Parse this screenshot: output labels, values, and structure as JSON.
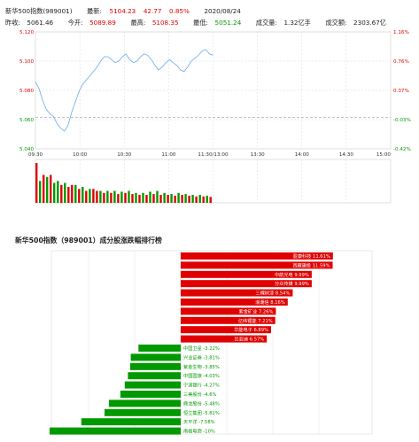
{
  "header": {
    "name": "新华500指数(989001)",
    "latest_label": "最新:",
    "latest_value": "5104.23",
    "change": "42.77",
    "change_pct": "0.85%",
    "date": "2020/08/24",
    "prev_close_label": "昨收:",
    "prev_close_value": "5061.46",
    "open_label": "今开:",
    "open_value": "5089.89",
    "high_label": "最高:",
    "high_value": "5108.35",
    "low_label": "最低:",
    "low_value": "5051.24",
    "volume_label": "成交量:",
    "volume_value": "1.32亿手",
    "amount_label": "成交额:",
    "amount_value": "2303.67亿"
  },
  "intraday": {
    "y_ticks_left": [
      "5.120",
      "5.100",
      "5.080",
      "5.060",
      "5.040"
    ],
    "y_ticks_right": [
      "1.16%",
      "0.76%",
      "0.37%",
      "-0.03%",
      "-0.42%"
    ],
    "x_ticks": [
      "09:30",
      "10:00",
      "10:30",
      "11:00",
      "11:30/13:00",
      "13:30",
      "14:00",
      "14:30",
      "15:00"
    ],
    "prev_close": 5061.46,
    "price": [
      5086,
      5081,
      5073,
      5067,
      5064,
      5062,
      5057,
      5054,
      5052,
      5056,
      5065,
      5072,
      5079,
      5084,
      5087,
      5090,
      5093,
      5096,
      5100,
      5103,
      5103,
      5101,
      5099,
      5100,
      5103,
      5105,
      5101,
      5099,
      5100,
      5103,
      5105,
      5104,
      5101,
      5097,
      5094,
      5096,
      5099,
      5101,
      5099,
      5097,
      5094,
      5093,
      5096,
      5100,
      5102,
      5104,
      5107,
      5108,
      5105,
      5104
    ],
    "volume": [
      1.0,
      0.55,
      0.7,
      0.65,
      0.7,
      0.5,
      0.55,
      0.45,
      0.5,
      0.4,
      0.45,
      0.45,
      0.35,
      0.4,
      0.3,
      0.35,
      0.35,
      0.3,
      0.3,
      0.25,
      0.3,
      0.25,
      0.3,
      0.22,
      0.28,
      0.25,
      0.3,
      0.22,
      0.25,
      0.2,
      0.25,
      0.2,
      0.28,
      0.22,
      0.3,
      0.2,
      0.25,
      0.2,
      0.22,
      0.18,
      0.25,
      0.2,
      0.22,
      0.18,
      0.2,
      0.16,
      0.2,
      0.16,
      0.18,
      0.15
    ],
    "volume_up": [
      true,
      false,
      true,
      false,
      true,
      false,
      false,
      true,
      false,
      true,
      true,
      false,
      true,
      false,
      true,
      false,
      true,
      true,
      false,
      true,
      false,
      true,
      false,
      true,
      false,
      true,
      false,
      true,
      false,
      true,
      false,
      true,
      false,
      true,
      false,
      true,
      false,
      true,
      false,
      true,
      false,
      true,
      false,
      true,
      false,
      true,
      false,
      true,
      false,
      true
    ]
  },
  "ranking": {
    "title": "新华500指数（989001）成分股涨跌幅排行榜",
    "gainers": [
      {
        "name": "盈康科技",
        "value": 11.61
      },
      {
        "name": "西藏建投",
        "value": 11.59
      },
      {
        "name": "中航光电",
        "value": 9.99
      },
      {
        "name": "分众传媒",
        "value": 9.99
      },
      {
        "name": "三棵树漆",
        "value": 8.54
      },
      {
        "name": "浪潮信",
        "value": 8.16
      },
      {
        "name": "紫金矿业",
        "value": 7.26
      },
      {
        "name": "亿纬锂能",
        "value": 7.21
      },
      {
        "name": "华能电子",
        "value": 6.89
      },
      {
        "name": "比亚迪",
        "value": 6.57
      }
    ],
    "losers": [
      {
        "name": "中国卫星",
        "value": -3.22
      },
      {
        "name": "兴业证券",
        "value": -3.81
      },
      {
        "name": "紫金生物",
        "value": -3.85
      },
      {
        "name": "中国国旅",
        "value": -4.03
      },
      {
        "name": "宁波银行",
        "value": -4.27
      },
      {
        "name": "三美股份",
        "value": -4.6
      },
      {
        "name": "鼎龙股份",
        "value": -5.48
      },
      {
        "name": "恒立集团",
        "value": -5.81
      },
      {
        "name": "天平洋",
        "value": -7.58
      },
      {
        "name": "南极电商",
        "value": -10
      }
    ]
  },
  "colors": {
    "up": "#e00000",
    "down": "#009900",
    "line": "#6aa9e9",
    "grid": "#d8d8d8"
  }
}
